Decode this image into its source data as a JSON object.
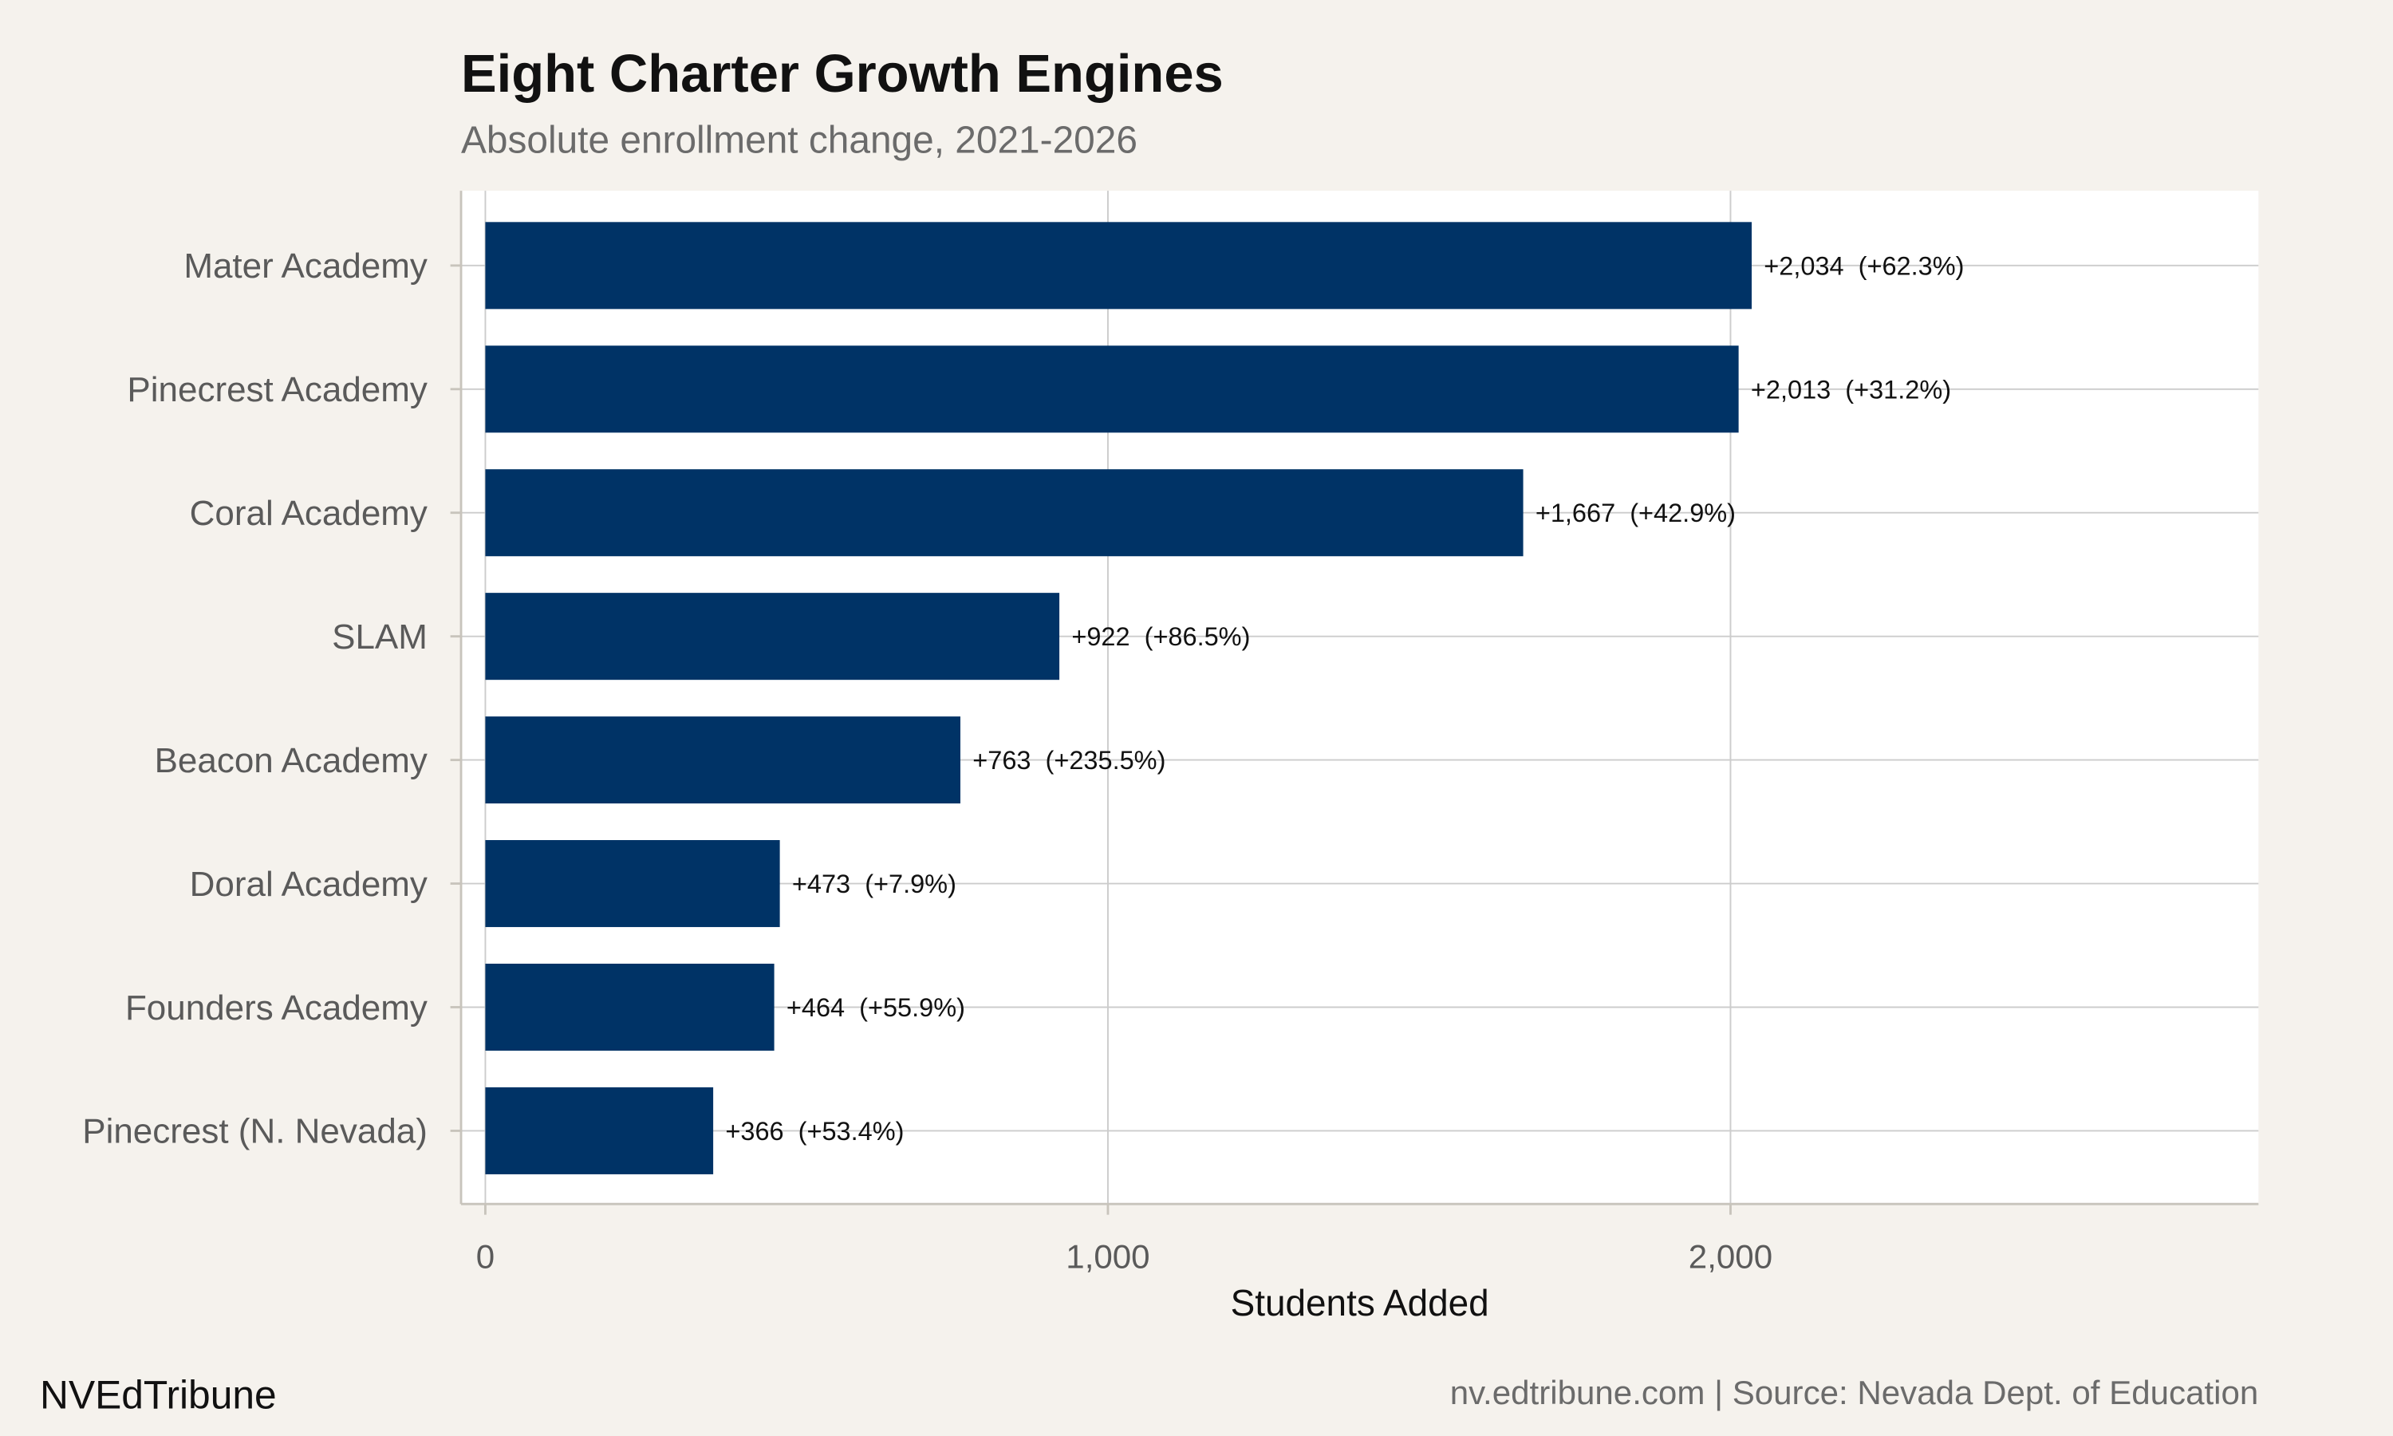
{
  "chart_data": {
    "type": "bar",
    "orientation": "horizontal",
    "title": "Eight Charter Growth Engines",
    "subtitle": "Absolute enrollment change, 2021-2026",
    "xlabel": "Students Added",
    "ylabel": "",
    "xlim": [
      -39,
      2848
    ],
    "xticks": [
      0,
      1000,
      2000
    ],
    "xtick_labels": [
      "0",
      "1,000",
      "2,000"
    ],
    "grid": true,
    "bar_color": "#003366",
    "categories": [
      "Mater Academy",
      "Pinecrest Academy",
      "Coral Academy",
      "SLAM",
      "Beacon Academy",
      "Doral Academy",
      "Founders Academy",
      "Pinecrest (N. Nevada)"
    ],
    "values": [
      2034,
      2013,
      1667,
      922,
      763,
      473,
      464,
      366
    ],
    "data_labels": [
      "+2,034  (+62.3%)",
      "+2,013  (+31.2%)",
      "+1,667  (+42.9%)",
      "+922  (+86.5%)",
      "+763  (+235.5%)",
      "+473  (+7.9%)",
      "+464  (+55.9%)",
      "+366  (+53.4%)"
    ],
    "percent_change": [
      62.3,
      31.2,
      42.9,
      86.5,
      235.5,
      7.9,
      55.9,
      53.4
    ]
  },
  "footer": {
    "brand": "NVEdTribune",
    "source": "nv.edtribune.com | Source: Nevada Dept. of Education"
  },
  "colors": {
    "background": "#f5f2ed",
    "panel": "#ffffff",
    "grid": "#cccccc",
    "bar": "#003366"
  }
}
